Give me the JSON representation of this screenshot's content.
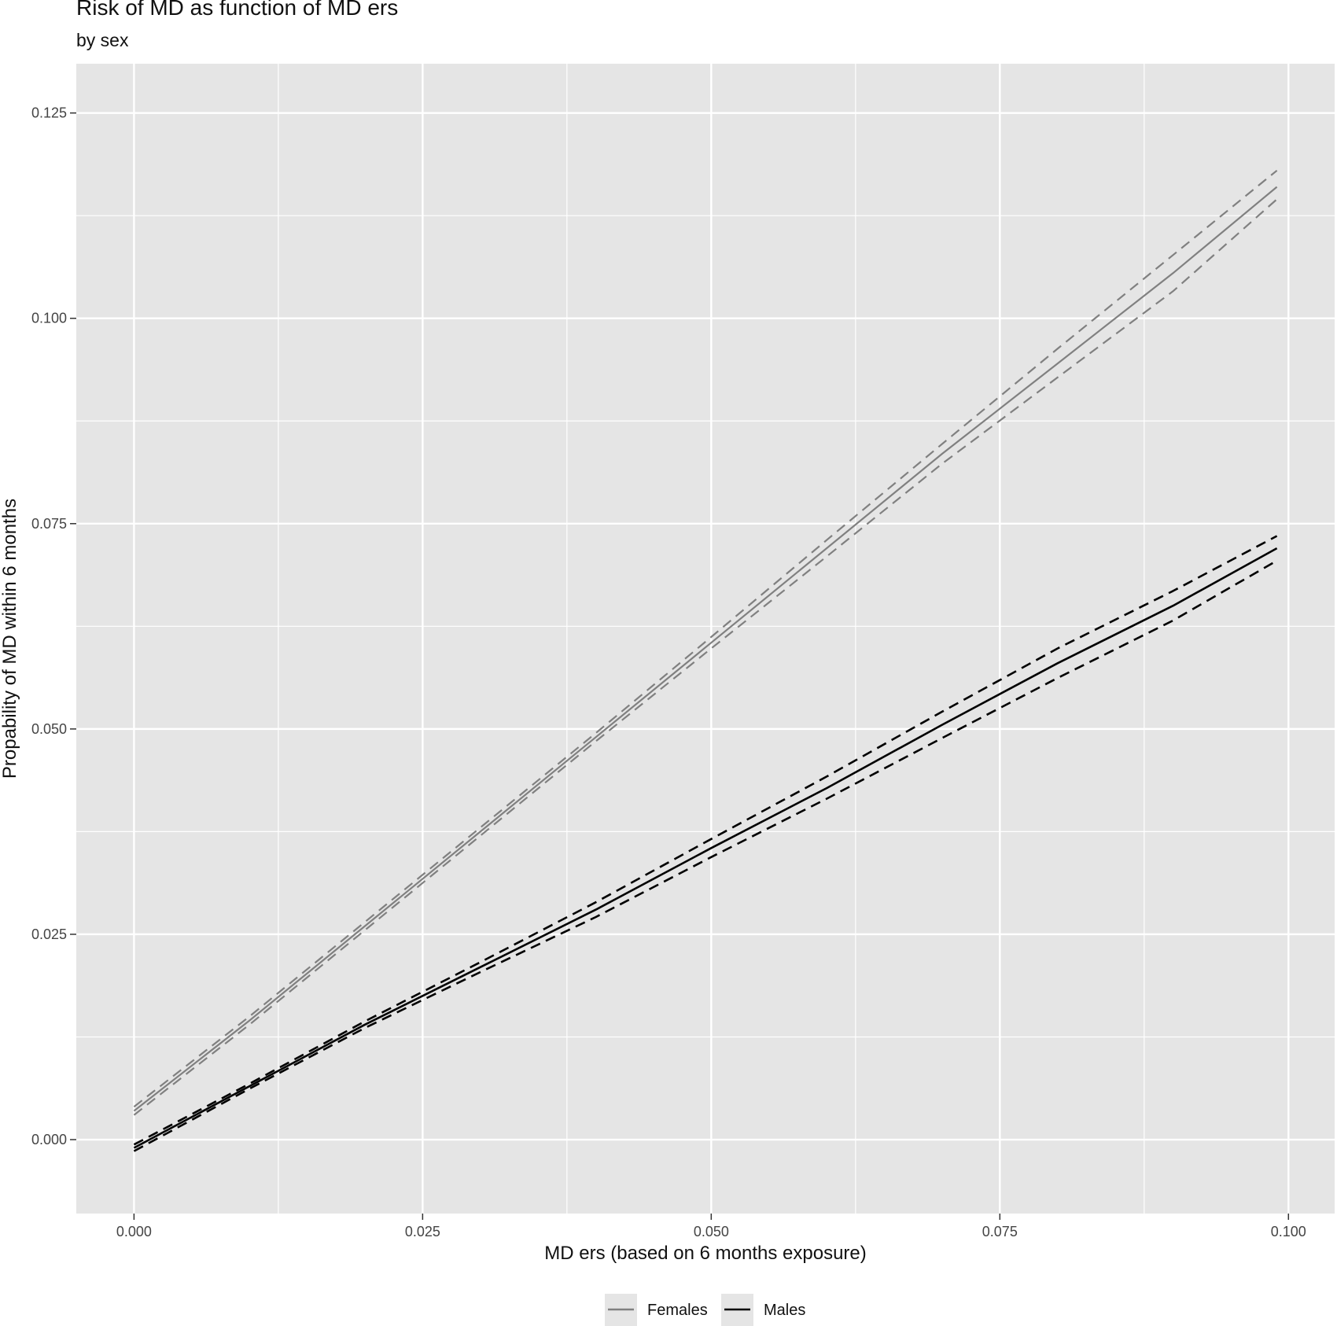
{
  "title": "Risk of MD as function of MD ers",
  "subtitle": "by sex",
  "colors": {
    "panel_background": "#e5e5e5",
    "grid": "#ffffff",
    "females": "#808080",
    "males": "#000000"
  },
  "chart_data": {
    "type": "line",
    "title": "Risk of MD as function of MD ers",
    "subtitle": "by sex",
    "xlabel": "MD ers (based on 6 months exposure)",
    "ylabel": "Propability of MD within 6 months",
    "xlim": [
      -0.005,
      0.104
    ],
    "ylim": [
      -0.009,
      0.131
    ],
    "x_ticks": [
      0.0,
      0.025,
      0.05,
      0.075,
      0.1
    ],
    "x_tick_labels": [
      "0.000",
      "0.025",
      "0.050",
      "0.075",
      "0.100"
    ],
    "y_ticks": [
      0.0,
      0.025,
      0.05,
      0.075,
      0.1,
      0.125
    ],
    "y_tick_labels": [
      "0.000",
      "0.025",
      "0.050",
      "0.075",
      "0.100",
      "0.125"
    ],
    "grid": true,
    "legend": {
      "position": "bottom",
      "entries": [
        "Females",
        "Males"
      ]
    },
    "x": [
      0.0,
      0.01,
      0.02,
      0.03,
      0.04,
      0.05,
      0.06,
      0.07,
      0.08,
      0.09,
      0.099
    ],
    "series": [
      {
        "name": "Females",
        "style": "solid",
        "color": "#808080",
        "values": [
          0.0035,
          0.0145,
          0.026,
          0.0375,
          0.049,
          0.0605,
          0.072,
          0.0835,
          0.0945,
          0.1055,
          0.116
        ]
      },
      {
        "name": "Females",
        "style": "dashed-upper",
        "color": "#808080",
        "values": [
          0.004,
          0.015,
          0.0265,
          0.038,
          0.0495,
          0.0612,
          0.073,
          0.0847,
          0.0963,
          0.1077,
          0.118
        ]
      },
      {
        "name": "Females",
        "style": "dashed-lower",
        "color": "#808080",
        "values": [
          0.003,
          0.014,
          0.0255,
          0.037,
          0.0485,
          0.0598,
          0.071,
          0.0823,
          0.0928,
          0.1033,
          0.1145
        ]
      },
      {
        "name": "Males",
        "style": "solid",
        "color": "#000000",
        "values": [
          -0.001,
          0.0065,
          0.014,
          0.021,
          0.028,
          0.0355,
          0.0428,
          0.0505,
          0.058,
          0.065,
          0.072
        ]
      },
      {
        "name": "Males",
        "style": "dashed-upper",
        "color": "#000000",
        "values": [
          -0.0006,
          0.0068,
          0.0144,
          0.0216,
          0.0289,
          0.0366,
          0.0442,
          0.0521,
          0.0598,
          0.0668,
          0.0735
        ]
      },
      {
        "name": "Males",
        "style": "dashed-lower",
        "color": "#000000",
        "values": [
          -0.0014,
          0.0062,
          0.0136,
          0.0204,
          0.0271,
          0.0344,
          0.0415,
          0.0489,
          0.0562,
          0.0632,
          0.0705
        ]
      }
    ]
  }
}
